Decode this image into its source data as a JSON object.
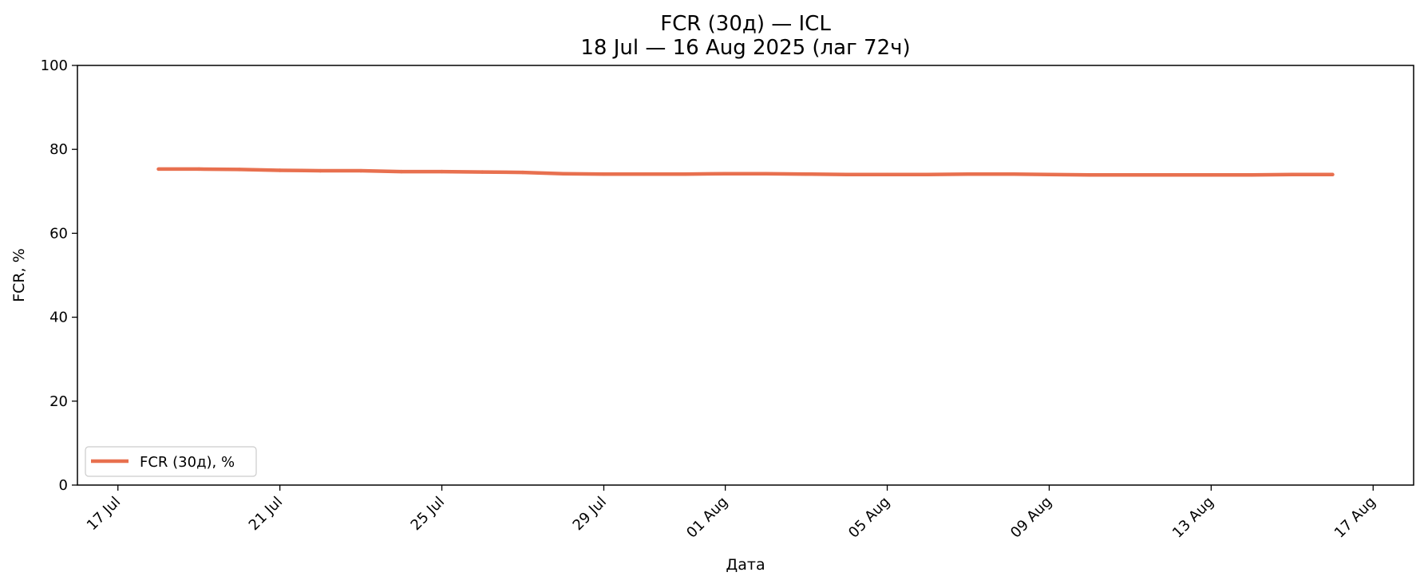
{
  "chart_data": {
    "type": "line",
    "title": "FCR (30д) — ICL",
    "subtitle": "18 Jul — 16 Aug 2025 (лаг 72ч)",
    "xlabel": "Дата",
    "ylabel": "FCR, %",
    "ylim": [
      0,
      100
    ],
    "yticks": [
      0,
      20,
      40,
      60,
      80,
      100
    ],
    "xlim": [
      "2025-07-16",
      "2025-08-18"
    ],
    "xticks": [
      {
        "date": "2025-07-17",
        "label": "17 Jul"
      },
      {
        "date": "2025-07-21",
        "label": "21 Jul"
      },
      {
        "date": "2025-07-25",
        "label": "25 Jul"
      },
      {
        "date": "2025-07-29",
        "label": "29 Jul"
      },
      {
        "date": "2025-08-01",
        "label": "01 Aug"
      },
      {
        "date": "2025-08-05",
        "label": "05 Aug"
      },
      {
        "date": "2025-08-09",
        "label": "09 Aug"
      },
      {
        "date": "2025-08-13",
        "label": "13 Aug"
      },
      {
        "date": "2025-08-17",
        "label": "17 Aug"
      }
    ],
    "grid": false,
    "legend_position": "lower-left",
    "series": [
      {
        "name": "FCR (30д), %",
        "color": "#e8704f",
        "x": [
          "2025-07-18",
          "2025-07-19",
          "2025-07-20",
          "2025-07-21",
          "2025-07-22",
          "2025-07-23",
          "2025-07-24",
          "2025-07-25",
          "2025-07-26",
          "2025-07-27",
          "2025-07-28",
          "2025-07-29",
          "2025-07-30",
          "2025-07-31",
          "2025-08-01",
          "2025-08-02",
          "2025-08-03",
          "2025-08-04",
          "2025-08-05",
          "2025-08-06",
          "2025-08-07",
          "2025-08-08",
          "2025-08-09",
          "2025-08-10",
          "2025-08-11",
          "2025-08-12",
          "2025-08-13",
          "2025-08-14",
          "2025-08-15",
          "2025-08-16"
        ],
        "y": [
          75.3,
          75.3,
          75.2,
          75.0,
          74.9,
          74.9,
          74.7,
          74.7,
          74.6,
          74.5,
          74.2,
          74.1,
          74.1,
          74.1,
          74.2,
          74.2,
          74.1,
          74.0,
          74.0,
          74.0,
          74.1,
          74.1,
          74.0,
          73.9,
          73.9,
          73.9,
          73.9,
          73.9,
          74.0,
          74.0
        ]
      }
    ]
  }
}
